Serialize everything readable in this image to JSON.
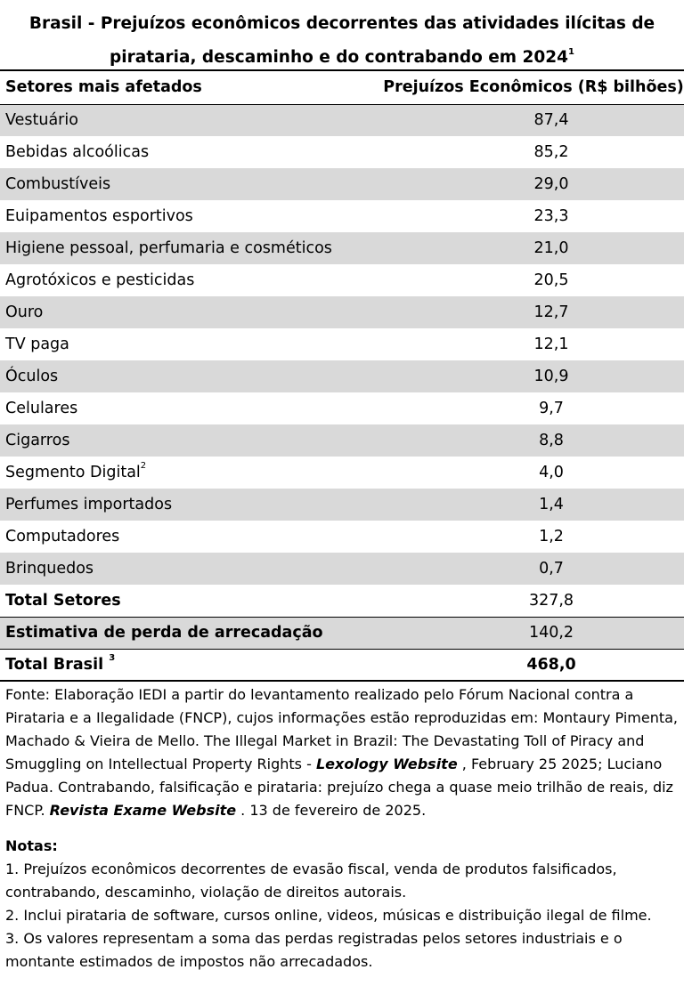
{
  "title": {
    "text": "Brasil - Prejuízos econômicos decorrentes das atividades ilícitas de pirataria, descaminho e do contrabando em 2024",
    "footnote_ref": "1"
  },
  "table": {
    "headers": [
      "Setores mais afetados",
      "Prejuízos Econômicos (R$ bilhões)"
    ],
    "rows": [
      {
        "sector": "Vestuário",
        "value": "87,4"
      },
      {
        "sector": "Bebidas alcoólicas",
        "value": "85,2"
      },
      {
        "sector": "Combustíveis",
        "value": "29,0"
      },
      {
        "sector": "Euipamentos esportivos",
        "value": "23,3"
      },
      {
        "sector": "Higiene pessoal, perfumaria e cosméticos",
        "value": "21,0"
      },
      {
        "sector": "Agrotóxicos e pesticidas",
        "value": "20,5"
      },
      {
        "sector": "Ouro",
        "value": "12,7"
      },
      {
        "sector": "TV paga",
        "value": "12,1"
      },
      {
        "sector": "Óculos",
        "value": "10,9"
      },
      {
        "sector": "Celulares",
        "value": "9,7"
      },
      {
        "sector": "Cigarros",
        "value": "8,8"
      },
      {
        "sector": "Segmento Digital",
        "value": "4,0",
        "footnote_ref": "2"
      },
      {
        "sector": "Perfumes importados",
        "value": "1,4"
      },
      {
        "sector": "Computadores",
        "value": "1,2"
      },
      {
        "sector": "Brinquedos",
        "value": "0,7"
      }
    ],
    "total_sectors": {
      "label": "Total Setores",
      "value": "327,8"
    },
    "estimate": {
      "label": "Estimativa de perda de arrecadação",
      "value": "140,2"
    },
    "grand_total": {
      "label": "Total Brasil",
      "value": "468,0",
      "footnote_ref": "3"
    }
  },
  "source": {
    "part1": "Fonte: Elaboração IEDI a partir do levantamento realizado pelo Fórum Nacional contra a Pirataria e a Ilegalidade (FNCP), cujos informações estão reproduzidas em: Montaury Pimenta, Machado & Vieira de Mello. The Illegal Market in Brazil: The Devastating Toll of Piracy and Smuggling on Intellectual Property Rights  - ",
    "em1": "Lexology Website",
    "part2": " , February 25 2025; Luciano Padua. Contrabando, falsificação e pirataria: prejuízo chega a quase meio trilhão de reais, diz FNCP. ",
    "em2": "Revista Exame Website",
    "part3": " . 13 de fevereiro de 2025."
  },
  "notes": {
    "heading": "Notas:",
    "items": [
      "1. Prejuízos econômicos decorrentes de evasão fiscal, venda de produtos falsificados, contrabando, descaminho, violação de direitos autorais.",
      "2. Inclui pirataria de software, cursos online, videos, músicas e distribuição ilegal de filme.",
      "3. Os valores representam a soma das perdas registradas pelos setores industriais e o montante estimados de impostos não arrecadados."
    ]
  }
}
